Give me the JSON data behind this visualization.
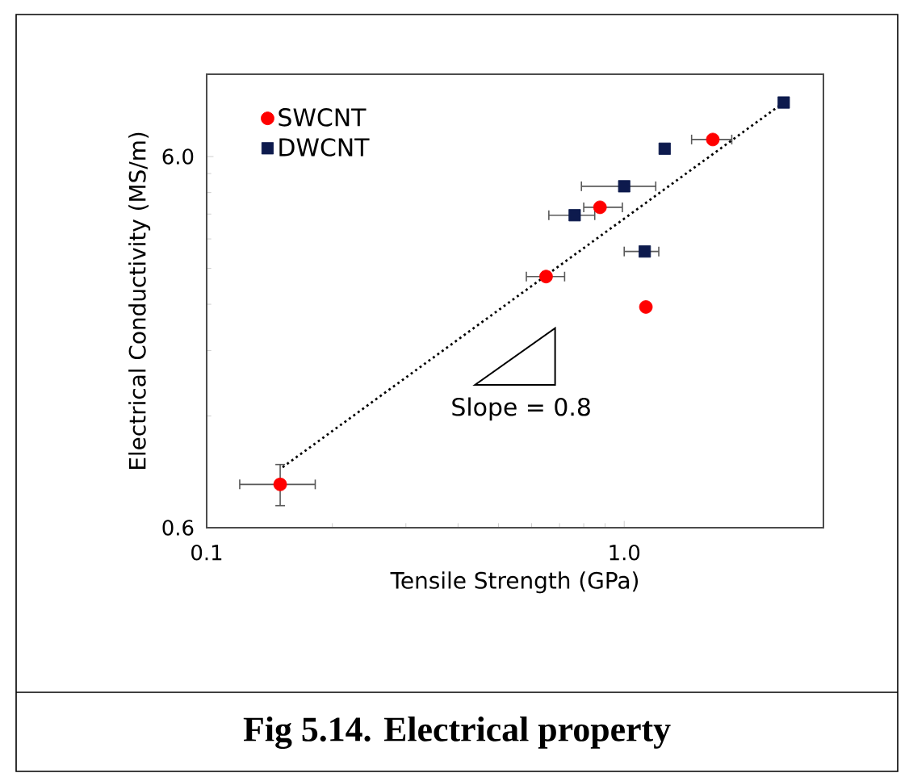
{
  "chart_data": {
    "type": "scatter",
    "xlabel": "Tensile Strength (GPa)",
    "ylabel": "Electrical Conductivity (MS/m)",
    "log": "xy",
    "xlim": [
      0.1,
      3
    ],
    "ylim": [
      0.6,
      10
    ],
    "xticks": [
      0.1,
      {
        "value": 1,
        "label": "1.0"
      }
    ],
    "yticks": [
      0.6,
      {
        "value": 6,
        "label": "6.0"
      }
    ],
    "legend": "top left",
    "grid": false,
    "series": [
      {
        "name": "SWCNT",
        "color": "#ff0000",
        "marker": "circle",
        "x": [
          0.15,
          0.65,
          0.875,
          1.127,
          1.63
        ],
        "values": [
          0.785,
          2.85,
          4.38,
          2.36,
          6.67
        ],
        "xerrors": [
          [
            0.12,
            0.182
          ],
          [
            0.583,
            0.72
          ],
          [
            0.8,
            0.99
          ],
          null,
          [
            1.45,
            1.81
          ]
        ],
        "errors": [
          [
            0.688,
            0.888
          ],
          null,
          null,
          null,
          null
        ]
      },
      {
        "name": "DWCNT",
        "color": "#0d1a4d",
        "marker": "square",
        "x": [
          0.761,
          1.0,
          1.12,
          1.25,
          2.41
        ],
        "values": [
          4.17,
          4.99,
          3.33,
          6.3,
          8.39
        ],
        "xerrors": [
          [
            0.66,
            0.85
          ],
          [
            0.79,
            1.19
          ],
          [
            1.0,
            1.21
          ],
          null,
          null
        ]
      },
      {
        "type": "line",
        "color": "#000000",
        "line_style": "dotted",
        "marker": "none",
        "x": [
          0.152,
          2.41
        ],
        "values": [
          0.873,
          8.39
        ]
      }
    ],
    "annotations": [
      "Slope = 0.8",
      "Fig 5.14. Electrical property"
    ]
  }
}
